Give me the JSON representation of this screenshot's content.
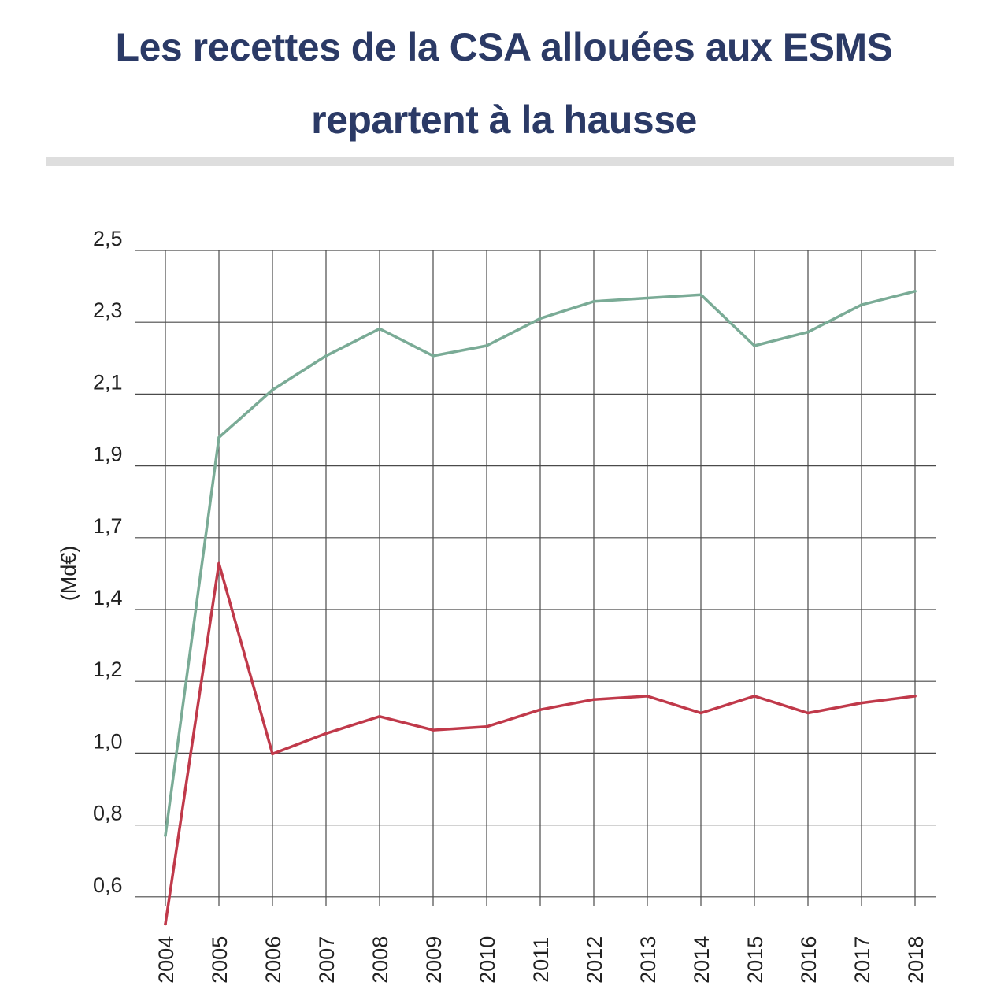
{
  "title_line1": "Les recettes de la CSA allouées aux ESMS",
  "title_line2": "repartent à la hausse",
  "chart_data": {
    "type": "line",
    "ylabel": "(Md€)",
    "xlabel": "",
    "x": [
      "2004",
      "2005",
      "2006",
      "2007",
      "2008",
      "2009",
      "2010",
      "2011",
      "2012",
      "2013",
      "2014",
      "2015",
      "2016",
      "2017",
      "2018"
    ],
    "y_ticks": [
      "2,5",
      "2,3",
      "2,1",
      "1,9",
      "1,7",
      "1,4",
      "1,2",
      "1,0",
      "0,8",
      "0,6"
    ],
    "ylim": [
      0.6,
      2.5
    ],
    "grid": true,
    "series": [
      {
        "color": "#7aab96",
        "values": [
          0.78,
          1.95,
          2.09,
          2.19,
          2.27,
          2.19,
          2.22,
          2.3,
          2.35,
          2.36,
          2.37,
          2.22,
          2.26,
          2.34,
          2.38
        ]
      },
      {
        "color": "#c0394a",
        "values": [
          0.52,
          1.58,
          1.02,
          1.08,
          1.13,
          1.09,
          1.1,
          1.15,
          1.18,
          1.19,
          1.14,
          1.19,
          1.14,
          1.17,
          1.19
        ]
      }
    ]
  }
}
